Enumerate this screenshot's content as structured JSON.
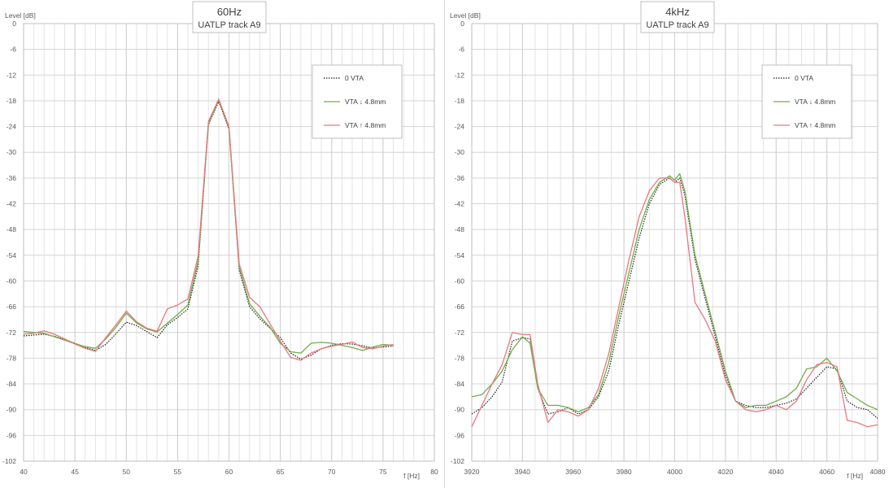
{
  "chart_data": [
    {
      "type": "line",
      "title": "60Hz",
      "subtitle": "UATLP track A9",
      "ylabel": "Level [dB]",
      "xlabel": "f [Hz]",
      "xlim": [
        40,
        80
      ],
      "ylim": [
        -102,
        0
      ],
      "x_ticks": [
        40,
        45,
        50,
        55,
        60,
        65,
        70,
        75,
        80
      ],
      "x_minor_step": 1,
      "y_ticks": [
        0,
        -6,
        -12,
        -18,
        -24,
        -30,
        -36,
        -42,
        -48,
        -54,
        -60,
        -66,
        -72,
        -78,
        -84,
        -90,
        -96,
        -102
      ],
      "grid": true,
      "legend": "top-right",
      "series": [
        {
          "name": "0 VTA",
          "color": "#1f1f1f",
          "style": "dotted",
          "points": [
            [
              40,
              -72.8
            ],
            [
              41,
              -72.6
            ],
            [
              42,
              -72.4
            ],
            [
              43,
              -72.9
            ],
            [
              44,
              -73.6
            ],
            [
              45,
              -74.5
            ],
            [
              46,
              -75.5
            ],
            [
              47,
              -76.2
            ],
            [
              48,
              -74.8
            ],
            [
              49,
              -72.3
            ],
            [
              50,
              -69.6
            ],
            [
              51,
              -70.4
            ],
            [
              52,
              -71.8
            ],
            [
              53,
              -73.2
            ],
            [
              54,
              -70.2
            ],
            [
              55,
              -68.5
            ],
            [
              56,
              -66.5
            ],
            [
              57,
              -56.5
            ],
            [
              58,
              -23.5
            ],
            [
              59,
              -18.2
            ],
            [
              60,
              -24.6
            ],
            [
              61,
              -57.5
            ],
            [
              62,
              -66.0
            ],
            [
              63,
              -68.8
            ],
            [
              64,
              -71.0
            ],
            [
              65,
              -73.2
            ],
            [
              66,
              -76.8
            ],
            [
              67,
              -78.2
            ],
            [
              68,
              -77.3
            ],
            [
              69,
              -75.8
            ],
            [
              70,
              -75.0
            ],
            [
              71,
              -74.6
            ],
            [
              72,
              -74.7
            ],
            [
              73,
              -75.1
            ],
            [
              74,
              -75.6
            ],
            [
              75,
              -75.4
            ],
            [
              76,
              -75.2
            ]
          ]
        },
        {
          "name": "VTA ↓ 4.8mm",
          "color": "#70ad47",
          "style": "solid",
          "points": [
            [
              40,
              -71.8
            ],
            [
              41,
              -72.0
            ],
            [
              42,
              -72.2
            ],
            [
              43,
              -73.0
            ],
            [
              44,
              -73.8
            ],
            [
              45,
              -74.6
            ],
            [
              46,
              -75.3
            ],
            [
              47,
              -75.7
            ],
            [
              48,
              -73.5
            ],
            [
              49,
              -70.8
            ],
            [
              50,
              -67.5
            ],
            [
              51,
              -69.8
            ],
            [
              52,
              -71.2
            ],
            [
              53,
              -71.9
            ],
            [
              54,
              -69.8
            ],
            [
              55,
              -67.8
            ],
            [
              56,
              -65.6
            ],
            [
              57,
              -55.4
            ],
            [
              58,
              -23.2
            ],
            [
              59,
              -17.8
            ],
            [
              60,
              -24.3
            ],
            [
              61,
              -56.8
            ],
            [
              62,
              -65.3
            ],
            [
              63,
              -68.2
            ],
            [
              64,
              -70.8
            ],
            [
              65,
              -74.5
            ],
            [
              66,
              -76.5
            ],
            [
              67,
              -76.8
            ],
            [
              68,
              -74.5
            ],
            [
              69,
              -74.3
            ],
            [
              70,
              -74.5
            ],
            [
              71,
              -75.0
            ],
            [
              72,
              -75.5
            ],
            [
              73,
              -76.2
            ],
            [
              74,
              -75.4
            ],
            [
              75,
              -74.8
            ],
            [
              76,
              -75.0
            ]
          ]
        },
        {
          "name": "VTA ↑ 4.8mm",
          "color": "#e8787f",
          "style": "solid",
          "points": [
            [
              40,
              -72.4
            ],
            [
              41,
              -72.2
            ],
            [
              42,
              -71.6
            ],
            [
              43,
              -72.4
            ],
            [
              44,
              -73.5
            ],
            [
              45,
              -74.7
            ],
            [
              46,
              -75.7
            ],
            [
              47,
              -76.4
            ],
            [
              48,
              -73.2
            ],
            [
              49,
              -70.2
            ],
            [
              50,
              -67.0
            ],
            [
              51,
              -69.5
            ],
            [
              52,
              -71.0
            ],
            [
              53,
              -71.7
            ],
            [
              54,
              -66.5
            ],
            [
              55,
              -65.6
            ],
            [
              56,
              -64.2
            ],
            [
              57,
              -54.2
            ],
            [
              58,
              -22.8
            ],
            [
              59,
              -17.6
            ],
            [
              60,
              -24.0
            ],
            [
              61,
              -56.0
            ],
            [
              62,
              -63.8
            ],
            [
              63,
              -66.0
            ],
            [
              64,
              -70.0
            ],
            [
              65,
              -74.0
            ],
            [
              66,
              -77.8
            ],
            [
              67,
              -78.5
            ],
            [
              68,
              -76.8
            ],
            [
              69,
              -75.8
            ],
            [
              70,
              -75.2
            ],
            [
              71,
              -74.8
            ],
            [
              72,
              -74.2
            ],
            [
              73,
              -75.5
            ],
            [
              74,
              -75.8
            ],
            [
              75,
              -75.2
            ],
            [
              76,
              -74.8
            ]
          ]
        }
      ]
    },
    {
      "type": "line",
      "title": "4kHz",
      "subtitle": "UATLP track A9",
      "ylabel": "Level [dB]",
      "xlabel": "f [Hz]",
      "xlim": [
        3920,
        4080
      ],
      "ylim": [
        -102,
        0
      ],
      "x_ticks": [
        3920,
        3940,
        3960,
        3980,
        4000,
        4020,
        4040,
        4060,
        4080
      ],
      "x_minor_step": 5,
      "y_ticks": [
        0,
        -6,
        -12,
        -18,
        -24,
        -30,
        -36,
        -42,
        -48,
        -54,
        -60,
        -66,
        -72,
        -78,
        -84,
        -90,
        -96,
        -102
      ],
      "grid": true,
      "legend": "top-right",
      "series": [
        {
          "name": "0 VTA",
          "color": "#1f1f1f",
          "style": "dotted",
          "points": [
            [
              3920,
              -91.0
            ],
            [
              3924,
              -89.5
            ],
            [
              3928,
              -87.0
            ],
            [
              3932,
              -83.5
            ],
            [
              3936,
              -74.0
            ],
            [
              3940,
              -73.2
            ],
            [
              3943,
              -73.5
            ],
            [
              3946,
              -85.0
            ],
            [
              3950,
              -91.0
            ],
            [
              3954,
              -90.5
            ],
            [
              3958,
              -89.5
            ],
            [
              3962,
              -91.0
            ],
            [
              3966,
              -90.0
            ],
            [
              3970,
              -87.0
            ],
            [
              3974,
              -81.0
            ],
            [
              3978,
              -70.0
            ],
            [
              3982,
              -60.0
            ],
            [
              3986,
              -50.0
            ],
            [
              3990,
              -42.0
            ],
            [
              3994,
              -37.5
            ],
            [
              3998,
              -36.0
            ],
            [
              4000,
              -37.0
            ],
            [
              4002,
              -36.0
            ],
            [
              4004,
              -40.0
            ],
            [
              4008,
              -55.0
            ],
            [
              4012,
              -64.0
            ],
            [
              4016,
              -73.0
            ],
            [
              4020,
              -82.0
            ],
            [
              4024,
              -88.0
            ],
            [
              4028,
              -89.0
            ],
            [
              4032,
              -89.5
            ],
            [
              4036,
              -89.5
            ],
            [
              4040,
              -89.0
            ],
            [
              4044,
              -88.5
            ],
            [
              4048,
              -87.5
            ],
            [
              4052,
              -85.0
            ],
            [
              4056,
              -82.5
            ],
            [
              4060,
              -80.0
            ],
            [
              4064,
              -80.5
            ],
            [
              4068,
              -88.0
            ],
            [
              4072,
              -89.5
            ],
            [
              4076,
              -90.0
            ],
            [
              4080,
              -92.0
            ]
          ]
        },
        {
          "name": "VTA ↓ 4.8mm",
          "color": "#70ad47",
          "style": "solid",
          "points": [
            [
              3920,
              -87.0
            ],
            [
              3924,
              -86.5
            ],
            [
              3928,
              -84.0
            ],
            [
              3932,
              -81.0
            ],
            [
              3936,
              -76.0
            ],
            [
              3940,
              -73.0
            ],
            [
              3943,
              -74.5
            ],
            [
              3946,
              -85.0
            ],
            [
              3950,
              -89.0
            ],
            [
              3954,
              -89.0
            ],
            [
              3958,
              -89.5
            ],
            [
              3962,
              -90.5
            ],
            [
              3966,
              -89.5
            ],
            [
              3970,
              -86.5
            ],
            [
              3974,
              -79.0
            ],
            [
              3978,
              -68.0
            ],
            [
              3982,
              -58.0
            ],
            [
              3986,
              -48.0
            ],
            [
              3990,
              -41.0
            ],
            [
              3994,
              -37.0
            ],
            [
              3998,
              -35.5
            ],
            [
              4000,
              -36.5
            ],
            [
              4002,
              -35.0
            ],
            [
              4004,
              -39.0
            ],
            [
              4008,
              -54.0
            ],
            [
              4012,
              -63.0
            ],
            [
              4016,
              -72.0
            ],
            [
              4020,
              -81.0
            ],
            [
              4024,
              -88.0
            ],
            [
              4028,
              -89.5
            ],
            [
              4032,
              -89.0
            ],
            [
              4036,
              -89.0
            ],
            [
              4040,
              -88.0
            ],
            [
              4044,
              -87.0
            ],
            [
              4048,
              -85.0
            ],
            [
              4052,
              -80.5
            ],
            [
              4056,
              -80.0
            ],
            [
              4060,
              -78.0
            ],
            [
              4064,
              -81.0
            ],
            [
              4068,
              -86.0
            ],
            [
              4072,
              -87.5
            ],
            [
              4076,
              -89.0
            ],
            [
              4080,
              -90.0
            ]
          ]
        },
        {
          "name": "VTA ↑ 4.8mm",
          "color": "#e8787f",
          "style": "solid",
          "points": [
            [
              3920,
              -94.0
            ],
            [
              3924,
              -89.0
            ],
            [
              3928,
              -84.0
            ],
            [
              3932,
              -79.5
            ],
            [
              3936,
              -72.0
            ],
            [
              3940,
              -72.5
            ],
            [
              3943,
              -72.5
            ],
            [
              3946,
              -84.0
            ],
            [
              3950,
              -93.0
            ],
            [
              3954,
              -90.0
            ],
            [
              3958,
              -90.5
            ],
            [
              3962,
              -91.5
            ],
            [
              3966,
              -90.0
            ],
            [
              3970,
              -85.0
            ],
            [
              3974,
              -77.0
            ],
            [
              3978,
              -66.0
            ],
            [
              3982,
              -55.0
            ],
            [
              3986,
              -45.0
            ],
            [
              3990,
              -39.0
            ],
            [
              3994,
              -36.0
            ],
            [
              3998,
              -36.0
            ],
            [
              4000,
              -37.0
            ],
            [
              4002,
              -37.0
            ],
            [
              4004,
              -45.0
            ],
            [
              4008,
              -65.0
            ],
            [
              4012,
              -69.0
            ],
            [
              4016,
              -74.0
            ],
            [
              4020,
              -83.0
            ],
            [
              4024,
              -88.0
            ],
            [
              4028,
              -90.0
            ],
            [
              4032,
              -90.5
            ],
            [
              4036,
              -90.0
            ],
            [
              4040,
              -89.0
            ],
            [
              4044,
              -90.0
            ],
            [
              4048,
              -88.0
            ],
            [
              4052,
              -83.0
            ],
            [
              4056,
              -79.5
            ],
            [
              4060,
              -79.0
            ],
            [
              4064,
              -80.0
            ],
            [
              4068,
              -92.5
            ],
            [
              4072,
              -93.0
            ],
            [
              4076,
              -94.0
            ],
            [
              4080,
              -93.5
            ]
          ]
        }
      ]
    }
  ]
}
